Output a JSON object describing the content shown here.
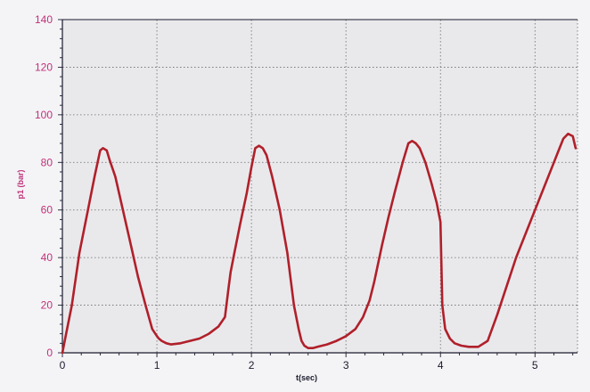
{
  "chart_data": {
    "type": "line",
    "title": "",
    "xlabel": "t(sec)",
    "ylabel": "p1 (bar)",
    "xlim": [
      0,
      5.45
    ],
    "ylim": [
      0,
      140
    ],
    "xticks": [
      0,
      1,
      2,
      3,
      4,
      5
    ],
    "yticks": [
      0,
      20,
      40,
      60,
      80,
      100,
      120,
      140
    ],
    "grid": true,
    "legend": "none",
    "colors": {
      "series": "#b0202a",
      "ytick_labels": "#c0307a",
      "xtick_labels": "#1a1a2e",
      "axes": "#1a1a2e",
      "grid": "#6a6a6a",
      "plot_bg": "#e9e9ec",
      "page_bg": "#f4f4f6"
    },
    "series": [
      {
        "x": [
          0.0,
          0.04,
          0.1,
          0.18,
          0.26,
          0.34,
          0.4,
          0.43,
          0.47,
          0.5,
          0.56,
          0.64,
          0.72,
          0.8,
          0.88,
          0.95,
          1.0,
          1.02,
          1.05,
          1.1,
          1.15,
          1.25,
          1.35,
          1.45,
          1.55,
          1.65,
          1.72,
          1.76,
          1.78,
          1.82,
          1.88,
          1.95,
          2.0,
          2.04,
          2.08,
          2.12,
          2.16,
          2.22,
          2.3,
          2.38,
          2.45,
          2.5,
          2.53,
          2.56,
          2.6,
          2.65,
          2.7,
          2.8,
          2.9,
          3.0,
          3.1,
          3.18,
          3.25,
          3.3,
          3.38,
          3.45,
          3.52,
          3.6,
          3.66,
          3.7,
          3.74,
          3.78,
          3.84,
          3.9,
          3.96,
          4.0,
          4.02,
          4.05,
          4.1,
          4.15,
          4.22,
          4.3,
          4.4,
          4.5,
          4.6,
          4.7,
          4.8,
          4.9,
          5.0,
          5.1,
          5.2,
          5.25,
          5.3,
          5.35,
          5.4,
          5.43
        ],
        "y": [
          0,
          8,
          20,
          42,
          58,
          74,
          85,
          86,
          85,
          81,
          74,
          60,
          46,
          32,
          20,
          10,
          7,
          6,
          5,
          4,
          3.5,
          4,
          5,
          6,
          8,
          11,
          15,
          28,
          34,
          42,
          54,
          67,
          78,
          86,
          87,
          86,
          83,
          74,
          60,
          42,
          20,
          10,
          5,
          3,
          2,
          2,
          2.5,
          3.5,
          5,
          7,
          10,
          15,
          22,
          30,
          45,
          57,
          68,
          80,
          88,
          89,
          88,
          86,
          80,
          72,
          63,
          55,
          20,
          10,
          6,
          4,
          3,
          2.5,
          2.5,
          5,
          16,
          28,
          40,
          50,
          60,
          70,
          80,
          85,
          90,
          92,
          91,
          86
        ]
      }
    ]
  }
}
